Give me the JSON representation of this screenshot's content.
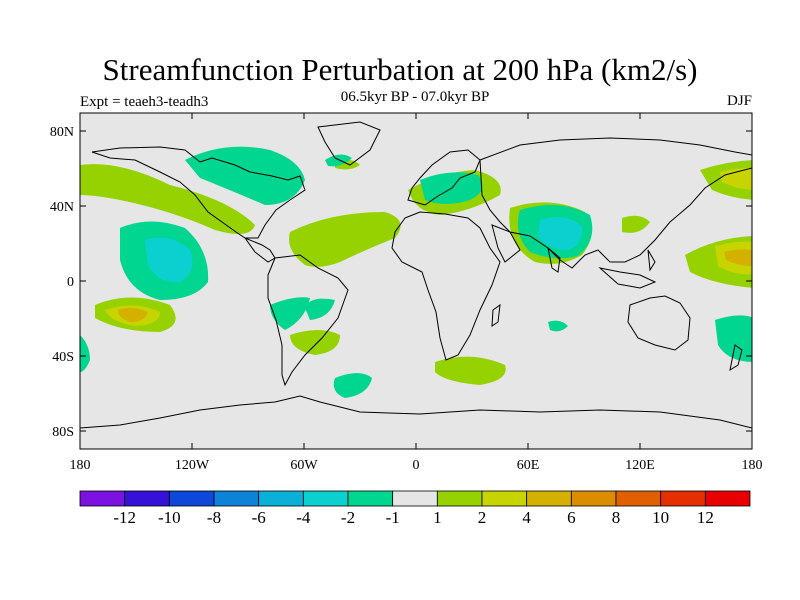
{
  "title": "Streamfunction Perturbation at 200 hPa (km2/s)",
  "subtitle": "06.5kyr BP - 07.0kyr BP",
  "left_label": "Expt = teaeh3-teadh3",
  "right_label": "DJF",
  "lat_labels": [
    "80N",
    "40N",
    "0",
    "40S",
    "80S"
  ],
  "lon_labels": [
    "180",
    "120W",
    "60W",
    "0",
    "60E",
    "120E",
    "180"
  ],
  "colorbar": {
    "labels": [
      "-12",
      "-10",
      "-8",
      "-6",
      "-4",
      "-2",
      "-1",
      "1",
      "2",
      "4",
      "6",
      "8",
      "10",
      "12"
    ],
    "colors": [
      "#7b12e0",
      "#3612d8",
      "#0d48d8",
      "#0c82d8",
      "#0bb0d8",
      "#0cd0d0",
      "#00d690",
      "#e6e6e6",
      "#96d200",
      "#c8d400",
      "#d4b000",
      "#dc8c00",
      "#e06000",
      "#e43000",
      "#e80000"
    ]
  }
}
